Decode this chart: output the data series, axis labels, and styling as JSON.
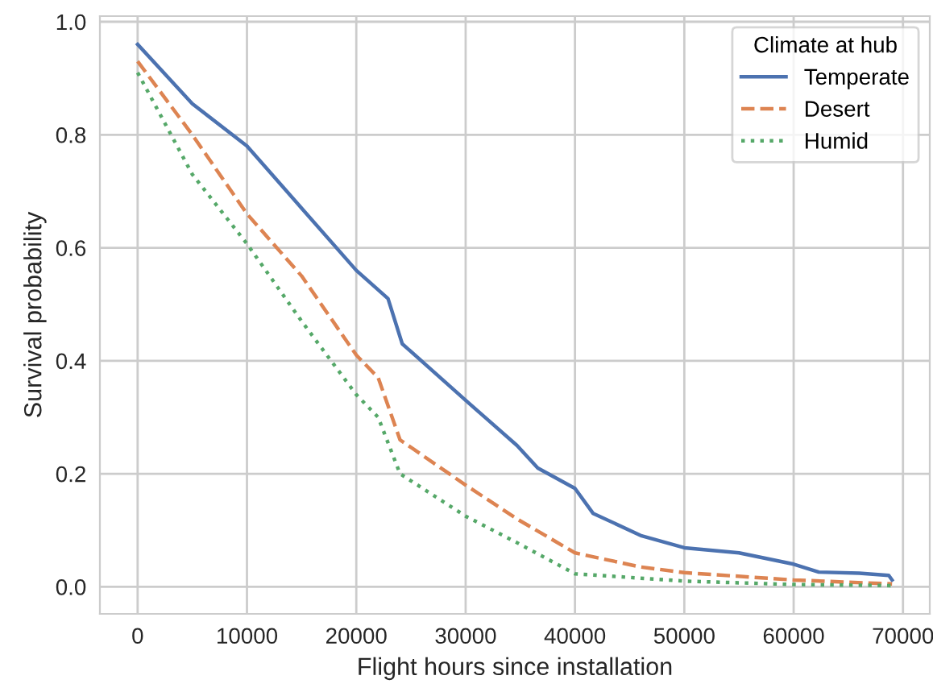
{
  "chart_data": {
    "type": "line",
    "xlabel": "Flight hours since installation",
    "ylabel": "Survival probability",
    "legend_title": "Climate at hub",
    "legend": "top right",
    "grid": true,
    "xlim": [
      -3450,
      72450
    ],
    "ylim": [
      -0.048,
      1.01
    ],
    "xticks": [
      0,
      10000,
      20000,
      30000,
      40000,
      50000,
      60000,
      70000
    ],
    "yticks": [
      {
        "value": 0,
        "label": "0.0"
      },
      0.2,
      0.4,
      0.6,
      0.8,
      {
        "value": 1,
        "label": "1.0"
      }
    ],
    "series": [
      {
        "name": "Temperate",
        "color": "#4c72b0",
        "line_style": "solid",
        "x": [
          0,
          5000,
          10000,
          15000,
          20000,
          22900,
          24200,
          30000,
          31760,
          34700,
          36600,
          40000,
          41650,
          46100,
          50000,
          55000,
          60000,
          62300,
          66000,
          68700,
          69000
        ],
        "values": [
          0.96,
          0.855,
          0.78,
          0.67,
          0.56,
          0.51,
          0.43,
          0.33,
          0.3,
          0.25,
          0.21,
          0.174,
          0.13,
          0.09,
          0.069,
          0.06,
          0.04,
          0.026,
          0.024,
          0.02,
          0.012
        ]
      },
      {
        "name": "Desert",
        "color": "#dd8452",
        "line_style": "dashed",
        "x": [
          0,
          5000,
          10000,
          15000,
          20000,
          22000,
          24000,
          30000,
          34700,
          40000,
          46000,
          50000,
          60000,
          69000
        ],
        "values": [
          0.93,
          0.8,
          0.66,
          0.55,
          0.41,
          0.37,
          0.26,
          0.18,
          0.12,
          0.06,
          0.035,
          0.025,
          0.012,
          0.005
        ]
      },
      {
        "name": "Humid",
        "color": "#55a868",
        "line_style": "dotted",
        "x": [
          0,
          5000,
          10000,
          15000,
          20000,
          22000,
          24000,
          30000,
          34700,
          40000,
          50000,
          60000,
          69000
        ],
        "values": [
          0.91,
          0.73,
          0.607,
          0.47,
          0.34,
          0.3,
          0.2,
          0.125,
          0.078,
          0.023,
          0.01,
          0.004,
          0.002
        ]
      }
    ]
  }
}
